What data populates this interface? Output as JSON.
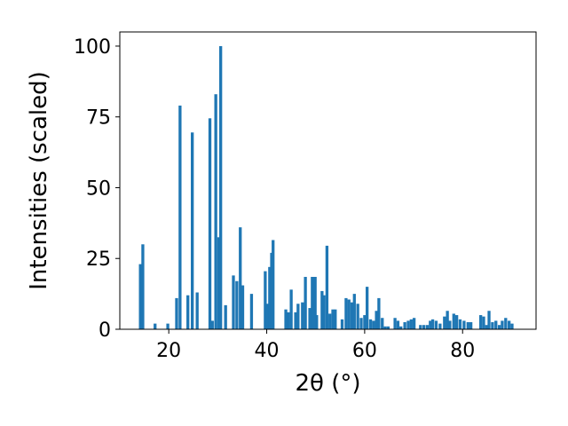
{
  "chart_data": {
    "type": "bar",
    "xlabel": "2θ (°)",
    "ylabel": "Intensities (scaled)",
    "xlim": [
      10,
      95
    ],
    "ylim": [
      0,
      105
    ],
    "xticks": [
      20,
      40,
      60,
      80
    ],
    "yticks": [
      0,
      25,
      50,
      75,
      100
    ],
    "bar_color": "#1f77b4",
    "bar_width": 0.6,
    "grid": false,
    "x": [
      14.2,
      14.7,
      17.2,
      19.8,
      21.6,
      22.3,
      23.9,
      24.8,
      25.8,
      28.4,
      28.9,
      29.6,
      30.2,
      30.6,
      31.6,
      33.2,
      33.9,
      34.6,
      35.1,
      36.9,
      39.7,
      40.2,
      40.6,
      41.0,
      41.3,
      43.9,
      44.4,
      45.0,
      45.9,
      46.4,
      47.3,
      47.9,
      48.8,
      49.3,
      49.9,
      50.2,
      51.3,
      51.7,
      52.3,
      52.9,
      53.5,
      54.0,
      55.4,
      56.2,
      56.8,
      57.4,
      57.9,
      58.6,
      59.3,
      60.0,
      60.5,
      61.2,
      61.8,
      62.4,
      62.9,
      63.6,
      64.2,
      64.8,
      66.2,
      66.8,
      67.4,
      68.2,
      68.9,
      69.5,
      70.1,
      71.4,
      72.1,
      72.8,
      73.4,
      73.9,
      74.6,
      75.4,
      76.3,
      76.9,
      77.4,
      78.2,
      78.8,
      79.5,
      80.3,
      81.1,
      81.7,
      83.7,
      84.3,
      84.9,
      85.4,
      86.1,
      86.8,
      87.5,
      88.1,
      88.8,
      89.5,
      90.1
    ],
    "values": [
      23,
      30,
      2,
      2,
      11,
      79,
      12,
      69.5,
      13,
      74.5,
      3,
      83,
      32.5,
      100,
      8.5,
      19,
      17,
      36,
      15.5,
      12.5,
      20.5,
      9,
      22,
      27,
      31.5,
      7,
      6,
      14,
      6,
      9,
      9.5,
      18.5,
      7.5,
      18.5,
      18.5,
      5,
      13.5,
      12,
      29.5,
      5.5,
      7,
      7,
      3.5,
      11,
      10.5,
      9.5,
      12.5,
      9,
      4,
      5,
      15,
      3.5,
      3,
      6.5,
      11,
      4,
      1,
      1,
      4,
      3,
      1,
      2.5,
      3,
      3.5,
      4,
      1.5,
      1.5,
      1.5,
      3,
      3.5,
      3,
      2,
      4.5,
      6.5,
      3,
      5.5,
      5,
      3.5,
      3,
      2.5,
      2.5,
      5,
      4.5,
      1.5,
      6.5,
      2.5,
      3,
      1.5,
      3,
      4,
      3,
      2
    ]
  }
}
